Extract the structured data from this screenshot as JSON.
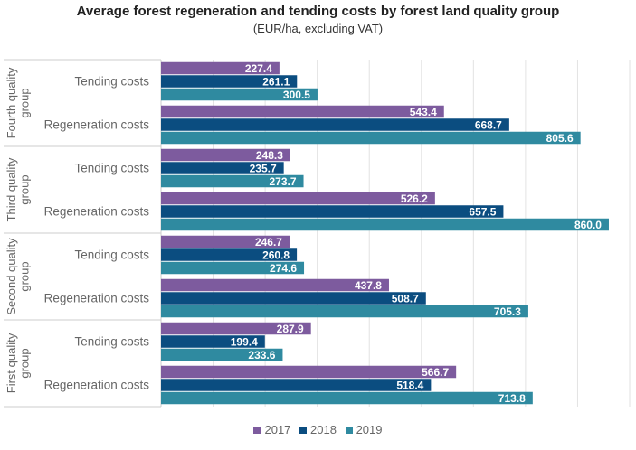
{
  "chart_data": {
    "type": "bar",
    "orientation": "horizontal",
    "title": "Average forest regeneration and tending costs by forest land quality group",
    "subtitle": "(EUR/ha, excluding VAT)",
    "xlim": [
      0,
      900
    ],
    "grid": true,
    "legend_position": "bottom",
    "groups": [
      {
        "name": "Fourth quality group",
        "categories": [
          {
            "label": "Tending costs",
            "values": [
              227.4,
              261.1,
              300.5
            ]
          },
          {
            "label": "Regeneration costs",
            "values": [
              543.4,
              668.7,
              805.6
            ]
          }
        ]
      },
      {
        "name": "Third quality group",
        "categories": [
          {
            "label": "Tending costs",
            "values": [
              248.3,
              235.7,
              273.7
            ]
          },
          {
            "label": "Regeneration costs",
            "values": [
              526.2,
              657.5,
              860.0
            ]
          }
        ]
      },
      {
        "name": "Second quality group",
        "categories": [
          {
            "label": "Tending costs",
            "values": [
              246.7,
              260.8,
              274.6
            ]
          },
          {
            "label": "Regeneration costs",
            "values": [
              437.8,
              508.7,
              705.3
            ]
          }
        ]
      },
      {
        "name": "First quality group",
        "categories": [
          {
            "label": "Tending costs",
            "values": [
              287.9,
              199.4,
              233.6
            ]
          },
          {
            "label": "Regeneration costs",
            "values": [
              566.7,
              518.4,
              713.8
            ]
          }
        ]
      }
    ],
    "series": [
      {
        "name": "2017",
        "color": "#7d5b9e"
      },
      {
        "name": "2018",
        "color": "#0b4d80"
      },
      {
        "name": "2019",
        "color": "#2f8aa0"
      }
    ]
  }
}
